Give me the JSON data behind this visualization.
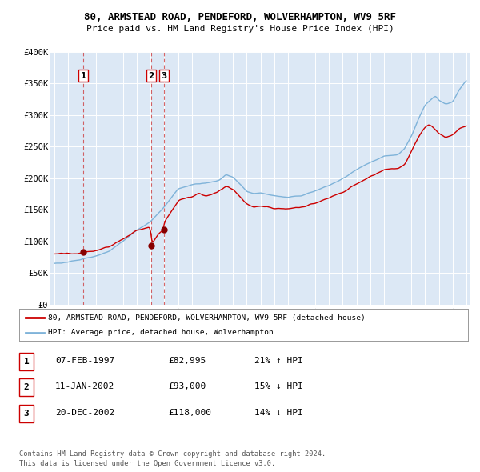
{
  "title": "80, ARMSTEAD ROAD, PENDEFORD, WOLVERHAMPTON, WV9 5RF",
  "subtitle": "Price paid vs. HM Land Registry's House Price Index (HPI)",
  "ylim": [
    0,
    400000
  ],
  "yticks": [
    0,
    50000,
    100000,
    150000,
    200000,
    250000,
    300000,
    350000,
    400000
  ],
  "ytick_labels": [
    "£0",
    "£50K",
    "£100K",
    "£150K",
    "£200K",
    "£250K",
    "£300K",
    "£350K",
    "£400K"
  ],
  "xlim_start": 1994.7,
  "xlim_end": 2025.3,
  "plot_bg_color": "#dce8f5",
  "grid_color": "#ffffff",
  "red_line_color": "#cc0000",
  "blue_line_color": "#7fb3d9",
  "sale_color": "#880000",
  "vline_color": "#cc3333",
  "sale_points": [
    {
      "year": 1997.1,
      "price": 82995,
      "label": "1"
    },
    {
      "year": 2002.04,
      "price": 93000,
      "label": "2"
    },
    {
      "year": 2002.97,
      "price": 118000,
      "label": "3"
    }
  ],
  "legend_line1": "80, ARMSTEAD ROAD, PENDEFORD, WOLVERHAMPTON, WV9 5RF (detached house)",
  "legend_line2": "HPI: Average price, detached house, Wolverhampton",
  "table_rows": [
    {
      "num": "1",
      "date": "07-FEB-1997",
      "price": "£82,995",
      "hpi": "21% ↑ HPI"
    },
    {
      "num": "2",
      "date": "11-JAN-2002",
      "price": "£93,000",
      "hpi": "15% ↓ HPI"
    },
    {
      "num": "3",
      "date": "20-DEC-2002",
      "price": "£118,000",
      "hpi": "14% ↓ HPI"
    }
  ],
  "footnote": "Contains HM Land Registry data © Crown copyright and database right 2024.\nThis data is licensed under the Open Government Licence v3.0."
}
